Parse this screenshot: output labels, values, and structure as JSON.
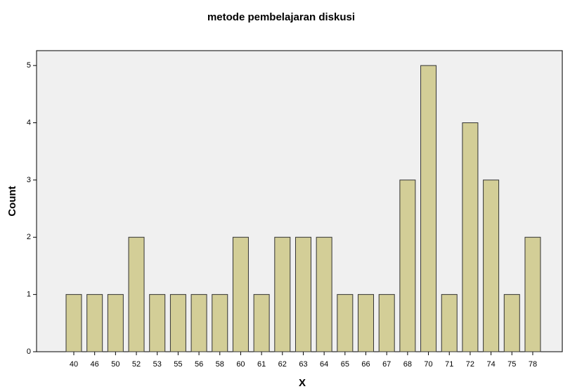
{
  "chart_data": {
    "type": "bar",
    "title": "metode pembelajaran diskusi",
    "x_label": "X",
    "y_label": "Count",
    "categories": [
      "40",
      "46",
      "50",
      "52",
      "53",
      "55",
      "56",
      "58",
      "60",
      "61",
      "62",
      "63",
      "64",
      "65",
      "66",
      "67",
      "68",
      "70",
      "71",
      "72",
      "74",
      "75",
      "78"
    ],
    "values": [
      1,
      1,
      1,
      2,
      1,
      1,
      1,
      1,
      2,
      1,
      2,
      2,
      2,
      1,
      1,
      1,
      3,
      5,
      1,
      4,
      3,
      1,
      2
    ],
    "color": "#d3ce97",
    "ylim": [
      0,
      5.26
    ],
    "yticks": [
      0,
      1,
      2,
      3,
      4,
      5
    ],
    "grid": false
  }
}
